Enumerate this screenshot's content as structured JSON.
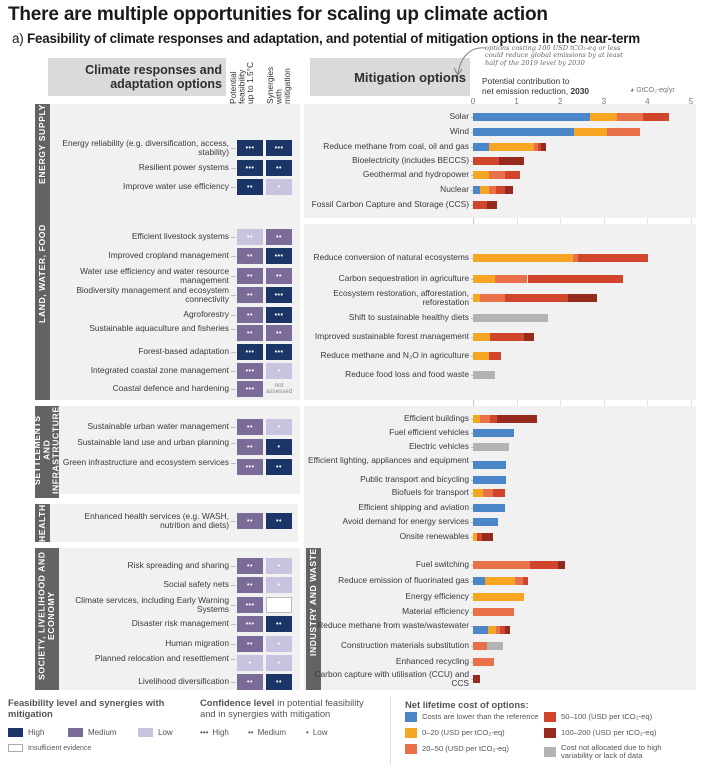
{
  "title": "There are multiple opportunities for scaling up climate action",
  "subtitle_prefix": "a) ",
  "subtitle_bold": "Feasibility of climate responses and adaptation, and potential of mitigation options in the near-term",
  "left_header": "Climate responses and adaptation options",
  "col_feasibility": "Potential feasibility up to 1.5°C",
  "col_synergies": "Synergies with mitigation",
  "right_header": "Mitigation options",
  "annotation": "options costing 100 USD tCO₂-eq or less could reduce global emissions by at least half of the 2019 level by 2030",
  "axis_title_line1": "Potential contribution to",
  "axis_title_line2": "net emission reduction, ",
  "axis_title_year": "2030",
  "axis_unit": "GtCO₂-eq/yr",
  "not_assessed": "not assessed",
  "adaptation": {
    "sectors": [
      {
        "name": "ENERGY SUPPLY",
        "options": [
          {
            "label": "Energy reliability (e.g. diversification, access, stability)",
            "feasibility": "high",
            "feasibility_conf": 3,
            "synergy": "high",
            "synergy_conf": 3
          },
          {
            "label": "Resilient power systems",
            "feasibility": "high",
            "feasibility_conf": 3,
            "synergy": "high",
            "synergy_conf": 2
          },
          {
            "label": "Improve water use efficiency",
            "feasibility": "high",
            "feasibility_conf": 2,
            "synergy": "low",
            "synergy_conf": 1
          }
        ]
      },
      {
        "name": "LAND, WATER, FOOD",
        "options": [
          {
            "label": "Efficient livestock systems",
            "feasibility": "low",
            "feasibility_conf": 2,
            "synergy": "medium",
            "synergy_conf": 2
          },
          {
            "label": "Improved cropland management",
            "feasibility": "medium",
            "feasibility_conf": 2,
            "synergy": "high",
            "synergy_conf": 3
          },
          {
            "label": "Water use efficiency and water resource management",
            "feasibility": "medium",
            "feasibility_conf": 2,
            "synergy": "medium",
            "synergy_conf": 2
          },
          {
            "label": "Biodiversity management and ecosystem connectivity",
            "feasibility": "medium",
            "feasibility_conf": 2,
            "synergy": "high",
            "synergy_conf": 3
          },
          {
            "label": "Agroforestry",
            "feasibility": "medium",
            "feasibility_conf": 2,
            "synergy": "high",
            "synergy_conf": 3
          },
          {
            "label": "Sustainable aquaculture and fisheries",
            "feasibility": "medium",
            "feasibility_conf": 2,
            "synergy": "medium",
            "synergy_conf": 2
          },
          {
            "label": "Forest-based adaptation",
            "feasibility": "high",
            "feasibility_conf": 3,
            "synergy": "high",
            "synergy_conf": 3
          },
          {
            "label": "Integrated coastal zone management",
            "feasibility": "medium",
            "feasibility_conf": 3,
            "synergy": "low",
            "synergy_conf": 1
          },
          {
            "label": "Coastal defence and hardening",
            "feasibility": "medium",
            "feasibility_conf": 3,
            "synergy": "not_assessed",
            "synergy_conf": 0
          }
        ]
      },
      {
        "name": "SETTLEMENTS AND INFRASTRUCTURE",
        "options": [
          {
            "label": "Sustainable urban water management",
            "feasibility": "medium",
            "feasibility_conf": 2,
            "synergy": "low",
            "synergy_conf": 1
          },
          {
            "label": "Sustainable land use and urban planning",
            "feasibility": "medium",
            "feasibility_conf": 2,
            "synergy": "high",
            "synergy_conf": 1
          },
          {
            "label": "Green infrastructure and ecosystem services",
            "feasibility": "medium",
            "feasibility_conf": 3,
            "synergy": "high",
            "synergy_conf": 2
          }
        ]
      },
      {
        "name": "HEALTH",
        "options": [
          {
            "label": "Enhanced health services (e.g. WASH, nutrition and diets)",
            "feasibility": "medium",
            "feasibility_conf": 2,
            "synergy": "high",
            "synergy_conf": 2
          }
        ]
      },
      {
        "name": "SOCIETY, LIVELIHOOD AND ECONOMY",
        "options": [
          {
            "label": "Risk spreading and sharing",
            "feasibility": "medium",
            "feasibility_conf": 2,
            "synergy": "low",
            "synergy_conf": 1
          },
          {
            "label": "Social safety nets",
            "feasibility": "medium",
            "feasibility_conf": 2,
            "synergy": "low",
            "synergy_conf": 1
          },
          {
            "label": "Climate services, including Early Warning Systems",
            "feasibility": "medium",
            "feasibility_conf": 3,
            "synergy": "insufficient",
            "synergy_conf": 0
          },
          {
            "label": "Disaster risk management",
            "feasibility": "medium",
            "feasibility_conf": 3,
            "synergy": "high",
            "synergy_conf": 2
          },
          {
            "label": "Human migration",
            "feasibility": "medium",
            "feasibility_conf": 2,
            "synergy": "low",
            "synergy_conf": 1
          },
          {
            "label": "Planned relocation and resettlement",
            "feasibility": "low",
            "feasibility_conf": 1,
            "synergy": "low",
            "synergy_conf": 1
          },
          {
            "label": "Livelihood diversification",
            "feasibility": "medium",
            "feasibility_conf": 2,
            "synergy": "high",
            "synergy_conf": 2
          }
        ]
      }
    ]
  },
  "chart_data": {
    "type": "bar",
    "orientation": "horizontal-stacked",
    "title": "Potential contribution to net emission reduction, 2030",
    "xlabel": "GtCO₂-eq/yr",
    "xlim": [
      0,
      5
    ],
    "xticks": [
      "0",
      "1",
      "2",
      "3",
      "4",
      "5"
    ],
    "grid": true,
    "cost_categories": [
      {
        "key": "neg",
        "label": "Costs are lower than the reference",
        "color": "#4a86c8"
      },
      {
        "key": "c0_20",
        "label": "0–20 (USD per tCO₂-eq)",
        "color": "#f6a623"
      },
      {
        "key": "c20_50",
        "label": "20–50 (USD per tCO₂-eq)",
        "color": "#e8714a"
      },
      {
        "key": "c50_100",
        "label": "50–100 (USD per tCO₂-eq)",
        "color": "#d2452d"
      },
      {
        "key": "c100_200",
        "label": "100–200 (USD per tCO₂-eq)",
        "color": "#962a1f"
      },
      {
        "key": "na",
        "label": "Cost not allocated due to high variability or lack of data",
        "color": "#b3b3b6"
      }
    ],
    "sectors": [
      {
        "name": "ENERGY SUPPLY",
        "options": [
          {
            "label": "Solar",
            "segments": {
              "neg": 2.69,
              "c0_20": 0.61,
              "c20_50": 0.59,
              "c50_100": 0.61
            }
          },
          {
            "label": "Wind",
            "segments": {
              "neg": 2.32,
              "c0_20": 0.76,
              "c20_50": 0.76
            }
          },
          {
            "label": "Reduce methane from coal, oil and gas",
            "segments": {
              "neg": 0.36,
              "c0_20": 1.03,
              "c20_50": 0.09,
              "c50_100": 0.08,
              "c100_200": 0.12
            }
          },
          {
            "label": "Bioelectricity (includes BECCS)",
            "segments": {
              "c50_100": 0.59,
              "c100_200": 0.59
            }
          },
          {
            "label": "Geothermal and hydropower",
            "segments": {
              "c0_20": 0.36,
              "c20_50": 0.37,
              "c50_100": 0.34
            }
          },
          {
            "label": "Nuclear",
            "segments": {
              "neg": 0.17,
              "c0_20": 0.19,
              "c20_50": 0.17,
              "c50_100": 0.21,
              "c100_200": 0.17
            }
          },
          {
            "label": "Fossil Carbon Capture and Storage (CCS)",
            "segments": {
              "c50_100": 0.31,
              "c100_200": 0.24
            }
          }
        ]
      },
      {
        "name": "LAND, WATER, FOOD",
        "options": [
          {
            "label": "Reduce conversion of natural ecosystems",
            "segments": {
              "c0_20": 2.3,
              "c20_50": 0.1,
              "c50_100": 1.62
            }
          },
          {
            "label": "Carbon sequestration in agriculture",
            "segments": {
              "c0_20": 0.51,
              "c20_50": 0.74,
              "c50_100": 2.19
            }
          },
          {
            "label": "Ecosystem restoration, afforestation, reforestation",
            "segments": {
              "c0_20": 0.17,
              "c20_50": 0.57,
              "c50_100": 1.45,
              "c100_200": 0.65
            }
          },
          {
            "label": "Shift to sustainable healthy diets",
            "segments": {
              "na": 1.72
            }
          },
          {
            "label": "Improved sustainable forest management",
            "segments": {
              "c0_20": 0.4,
              "c50_100": 0.78,
              "c100_200": 0.22
            }
          },
          {
            "label": "Reduce methane and N₂O in agriculture",
            "segments": {
              "c0_20": 0.36,
              "c50_100": 0.28
            }
          },
          {
            "label": "Reduce food loss and food waste",
            "segments": {
              "na": 0.51
            }
          }
        ]
      },
      {
        "name": "SETTLEMENTS AND INFRASTRUCTURE",
        "options": [
          {
            "label": "Efficient buildings",
            "segments": {
              "c0_20": 0.17,
              "c20_50": 0.21,
              "c50_100": 0.18,
              "c100_200": 0.91
            }
          },
          {
            "label": "Fuel efficient vehicles",
            "segments": {
              "neg": 0.95
            }
          },
          {
            "label": "Electric vehicles",
            "segments": {
              "na": 0.83
            }
          },
          {
            "label": "Efficient lighting, appliances and equipment",
            "segments": {
              "neg": 0.75
            }
          },
          {
            "label": "Public transport and bicycling",
            "segments": {
              "neg": 0.75
            }
          },
          {
            "label": "Biofuels for transport",
            "segments": {
              "c0_20": 0.24,
              "c20_50": 0.23,
              "c50_100": 0.26
            }
          },
          {
            "label": "Efficient shipping and aviation",
            "segments": {
              "neg": 0.73
            }
          },
          {
            "label": "Avoid demand for energy services",
            "segments": {
              "neg": 0.58
            }
          },
          {
            "label": "Onsite renewables",
            "segments": {
              "c0_20": 0.09,
              "c50_100": 0.12,
              "c100_200": 0.26
            }
          }
        ]
      },
      {
        "name": "INDUSTRY AND WASTE",
        "options": [
          {
            "label": "Fuel switching",
            "segments": {
              "c20_50": 1.3,
              "c50_100": 0.64,
              "c100_200": 0.17
            }
          },
          {
            "label": "Reduce emission of fluorinated gas",
            "segments": {
              "neg": 0.27,
              "c0_20": 0.7,
              "c20_50": 0.18,
              "c50_100": 0.11
            }
          },
          {
            "label": "Energy efficiency",
            "segments": {
              "c0_20": 1.16
            }
          },
          {
            "label": "Material efficiency",
            "segments": {
              "c20_50": 0.95
            }
          },
          {
            "label": "Reduce methane from waste/wastewater",
            "segments": {
              "neg": 0.34,
              "c0_20": 0.19,
              "c20_50": 0.1,
              "c50_100": 0.11,
              "c100_200": 0.1
            }
          },
          {
            "label": "Construction materials substitution",
            "segments": {
              "c20_50": 0.31,
              "na": 0.38
            }
          },
          {
            "label": "Enhanced recycling",
            "segments": {
              "c20_50": 0.49
            }
          },
          {
            "label": "Carbon capture with utilisation (CCU) and CCS",
            "segments": {
              "c100_200": 0.17
            }
          }
        ]
      }
    ]
  },
  "legend": {
    "feasibility_title": "Feasibility level and synergies with mitigation",
    "feasibility_items": [
      {
        "label": "High",
        "color": "#1c3567"
      },
      {
        "label": "Medium",
        "color": "#7a6b98"
      },
      {
        "label": "Low",
        "color": "#c9c3e0"
      }
    ],
    "insufficient_label": "Insufficient evidence",
    "confidence_title_bold": "Confidence level",
    "confidence_title_rest": " in potential feasibility and in synergies with mitigation",
    "confidence_items": [
      {
        "dots": "•••",
        "label": "High"
      },
      {
        "dots": "••",
        "label": "Medium"
      },
      {
        "dots": "•",
        "label": "Low"
      }
    ],
    "cost_title": "Net lifetime cost of options:"
  }
}
